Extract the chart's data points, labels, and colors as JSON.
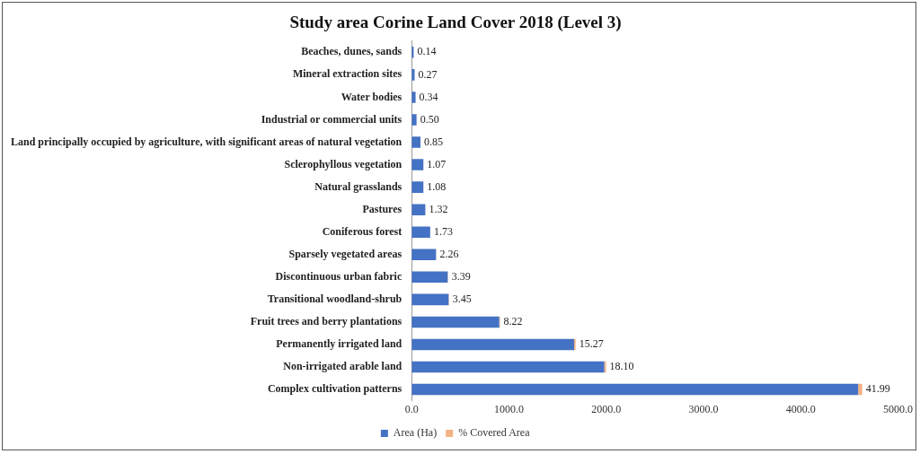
{
  "chart_data": {
    "type": "bar",
    "orientation": "horizontal",
    "stacked": true,
    "title": "Study area Corine Land Cover 2018 (Level 3)",
    "categories": [
      "Beaches, dunes, sands",
      "Mineral extraction sites",
      "Water bodies",
      "Industrial or commercial units",
      "Land principally occupied by agriculture, with significant areas of natural vegetation",
      "Sclerophyllous vegetation",
      "Natural grasslands",
      "Pastures",
      "Coniferous forest",
      "Sparsely vegetated areas",
      "Discontinuous urban fabric",
      "Transitional woodland-shrub",
      "Fruit trees and berry plantations",
      "Permanently irrigated land",
      "Non-irrigated arable land",
      "Complex cultivation patterns"
    ],
    "series": [
      {
        "name": "Area (Ha)",
        "color": "#4472c4",
        "values": [
          20,
          30,
          40,
          50,
          90,
          120,
          120,
          140,
          190,
          250,
          370,
          380,
          900,
          1670,
          1980,
          4590
        ]
      },
      {
        "name": "% Covered Area",
        "color": "#f4b183",
        "values": [
          0.14,
          0.27,
          0.34,
          0.5,
          0.85,
          1.07,
          1.08,
          1.32,
          1.73,
          2.26,
          3.39,
          3.45,
          8.22,
          15.27,
          18.1,
          41.99
        ],
        "value_labels": [
          "0.14",
          "0.27",
          "0.34",
          "0.50",
          "0.85",
          "1.07",
          "1.08",
          "1.32",
          "1.73",
          "2.26",
          "3.39",
          "3.45",
          "8.22",
          "15.27",
          "18.10",
          "41.99"
        ]
      }
    ],
    "xlim": [
      0,
      5000
    ],
    "xticks": [
      {
        "value": 0,
        "label": "0.0"
      },
      {
        "value": 1000,
        "label": "1000.0"
      },
      {
        "value": 2000,
        "label": "2000.0"
      },
      {
        "value": 3000,
        "label": "3000.0"
      },
      {
        "value": 4000,
        "label": "4000.0"
      },
      {
        "value": 5000,
        "label": "5000.0"
      }
    ],
    "grid": false,
    "legend": "bottom"
  }
}
